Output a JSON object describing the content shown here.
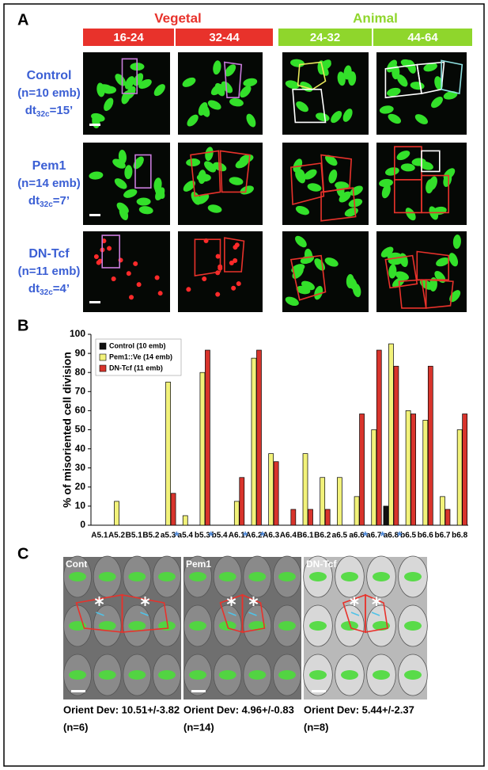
{
  "panel_a": {
    "label": "A",
    "groups": [
      {
        "label": "Vegetal",
        "color": "#e8322b",
        "stages": [
          "16-24",
          "32-44"
        ]
      },
      {
        "label": "Animal",
        "color": "#8fd62c",
        "stages": [
          "24-32",
          "44-64"
        ]
      }
    ],
    "rows": [
      {
        "name": "Control",
        "n": "(n=10 emb)",
        "dt": {
          "main": "dt",
          "sub": "32c",
          "rest": "=15’"
        }
      },
      {
        "name": "Pem1",
        "n": "(n=14 emb)",
        "dt": {
          "main": "dt",
          "sub": "32c",
          "rest": "=7’"
        }
      },
      {
        "name": "DN-Tcf",
        "n": "(n=11 emb)",
        "dt": {
          "main": "dt",
          "sub": "32c",
          "rest": "=4’"
        }
      }
    ]
  },
  "chart_data": {
    "type": "bar",
    "panel_label": "B",
    "ylabel": "% of misoriented cell division",
    "categories": [
      "A5.1",
      "A5.2",
      "B5.1",
      "B5.2",
      "a5.3",
      "a5.4",
      "b5.3",
      "b5.4",
      "A6.1",
      "A6.2",
      "A6.3",
      "A6.4",
      "B6.1",
      "B6.2",
      "a6.5",
      "a6.6",
      "a6.7",
      "a6.8",
      "b6.5",
      "b6.6",
      "b6.7",
      "b6.8"
    ],
    "series": [
      {
        "name": "Control (10 emb)",
        "color": "#111111",
        "values": [
          0,
          0,
          0,
          0,
          0,
          0,
          0,
          0,
          0,
          0,
          0,
          0,
          0,
          0,
          0,
          0,
          0,
          10,
          0,
          0,
          0,
          0
        ]
      },
      {
        "name": "Pem1::Ve (14 emb)",
        "color": "#f2f27a",
        "values": [
          0,
          12.5,
          0,
          0,
          75,
          5,
          80,
          0,
          12.5,
          87.5,
          37.5,
          0,
          37.5,
          25,
          25,
          15,
          50,
          95,
          60,
          55,
          15,
          50
        ]
      },
      {
        "name": "DN-Tcf (11 emb)",
        "color": "#d8342c",
        "values": [
          0,
          0,
          0,
          0,
          16.7,
          0,
          91.7,
          0,
          25,
          91.7,
          33.3,
          8.3,
          8.3,
          8.3,
          0,
          58.3,
          91.7,
          83.3,
          58.3,
          83.3,
          8.3,
          58.3
        ]
      }
    ],
    "annotations": [
      {
        "text": "*",
        "category": "a5.3",
        "color": "#4a86d8"
      },
      {
        "text": "*",
        "category": "b5.3",
        "color": "#4a86d8"
      },
      {
        "text": "*",
        "category": "A6.1",
        "color": "#4a86d8"
      },
      {
        "text": "*",
        "category": "A6.2",
        "color": "#4a86d8"
      },
      {
        "text": "*",
        "category": "a6.6",
        "color": "#4a86d8"
      },
      {
        "text": "*",
        "category": "a6.7",
        "color": "#4a86d8"
      },
      {
        "text": "*",
        "category": "a6.8",
        "color": "#4a86d8"
      }
    ],
    "ylim": [
      0,
      100
    ],
    "yticks": [
      0,
      10,
      20,
      30,
      40,
      50,
      60,
      70,
      80,
      90,
      100
    ],
    "legend": "upper-left"
  },
  "panel_c": {
    "label": "C",
    "images": [
      {
        "name": "Cont",
        "dev": "Orient Dev: 10.51+/-3.82",
        "n": "(n=6)"
      },
      {
        "name": "Pem1",
        "dev": "Orient Dev: 4.96+/-0.83",
        "n": "(n=14)"
      },
      {
        "name": "DN-Tcf",
        "dev": "Orient Dev: 5.44+/-2.37",
        "n": "(n=8)"
      }
    ]
  }
}
